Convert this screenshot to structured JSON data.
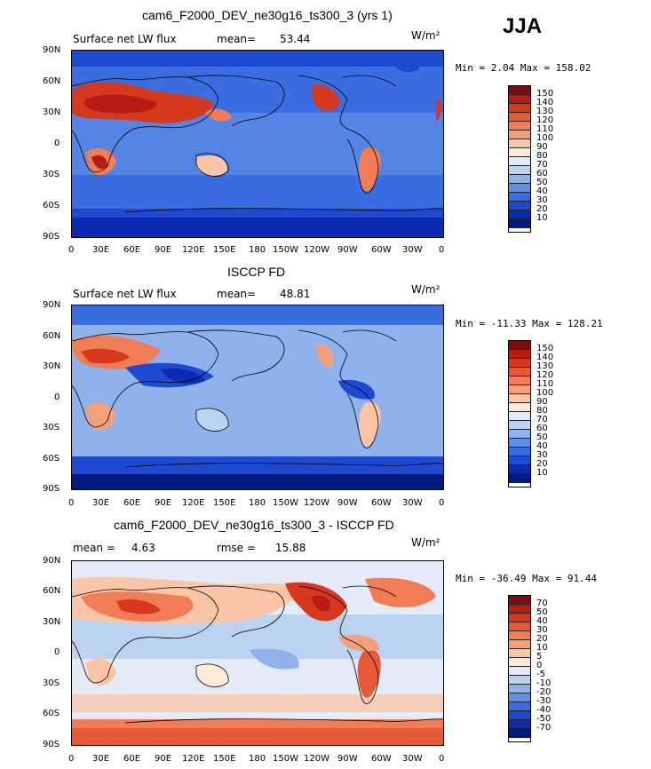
{
  "season": "JJA",
  "units": "W/m²",
  "lat_labels": [
    "90N",
    "60N",
    "30N",
    "0",
    "30S",
    "60S",
    "90S"
  ],
  "lon_labels": [
    "0",
    "30E",
    "60E",
    "90E",
    "120E",
    "150E",
    "180",
    "150W",
    "120W",
    "90W",
    "60W",
    "30W",
    "0"
  ],
  "panels": [
    {
      "title": "cam6_F2000_DEV_ne30g16_ts300_3 (yrs 1)",
      "left_header": "Surface net LW flux",
      "mean_label": "mean=",
      "mean_value": "53.44",
      "rmse_label": "",
      "rmse_value": "",
      "minmax": "Min =   2.04 Max = 158.02",
      "levels": [
        "150",
        "140",
        "130",
        "120",
        "110",
        "100",
        "90",
        "80",
        "70",
        "60",
        "50",
        "40",
        "30",
        "20",
        "10"
      ],
      "colors": [
        "#7a0d0d",
        "#b51c14",
        "#d6381e",
        "#e65a35",
        "#f07d55",
        "#f5a07a",
        "#fbc6a7",
        "#fdebd9",
        "#e2ebf7",
        "#bcd2f1",
        "#8fb2ec",
        "#5f8fe7",
        "#3a6ee0",
        "#1e4ad2",
        "#0d2ab3",
        "#001a80"
      ]
    },
    {
      "title": "ISCCP FD",
      "left_header": "Surface net LW flux",
      "mean_label": "mean=",
      "mean_value": "48.81",
      "rmse_label": "",
      "rmse_value": "",
      "minmax": "Min = -11.33 Max = 128.21",
      "levels": [
        "150",
        "140",
        "130",
        "120",
        "110",
        "100",
        "90",
        "80",
        "70",
        "60",
        "50",
        "40",
        "30",
        "20",
        "10"
      ],
      "colors": [
        "#7a0d0d",
        "#b51c14",
        "#d6381e",
        "#e65a35",
        "#f07d55",
        "#f5a07a",
        "#fbc6a7",
        "#fdebd9",
        "#e2ebf7",
        "#bcd2f1",
        "#8fb2ec",
        "#5f8fe7",
        "#3a6ee0",
        "#1e4ad2",
        "#0d2ab3",
        "#001a80"
      ]
    },
    {
      "title": "cam6_F2000_DEV_ne30g16_ts300_3 - ISCCP FD",
      "left_header": "",
      "mean_label": "mean =",
      "mean_value": "4.63",
      "rmse_label": "rmse =",
      "rmse_value": "15.88",
      "minmax": "Min = -36.49 Max =  91.44",
      "levels": [
        "70",
        "50",
        "40",
        "30",
        "20",
        "10",
        "5",
        "0",
        "-5",
        "-10",
        "-20",
        "-30",
        "-40",
        "-50",
        "-70"
      ],
      "colors": [
        "#7a0d0d",
        "#b51c14",
        "#d6381e",
        "#e65a35",
        "#f07d55",
        "#f5a07a",
        "#fbc6a7",
        "#fdebd9",
        "#e2ebf7",
        "#bcd2f1",
        "#8fb2ec",
        "#5f8fe7",
        "#3a6ee0",
        "#1e4ad2",
        "#0d2ab3",
        "#001a80"
      ]
    }
  ]
}
